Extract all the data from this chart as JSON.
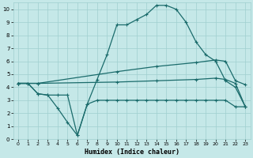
{
  "xlabel": "Humidex (Indice chaleur)",
  "bg_color": "#c5e8e8",
  "grid_color": "#9fcfcf",
  "line_color": "#1a6b6b",
  "xlim": [
    -0.5,
    23.5
  ],
  "ylim": [
    0,
    10.5
  ],
  "xticks": [
    0,
    1,
    2,
    3,
    4,
    5,
    6,
    7,
    8,
    9,
    10,
    11,
    12,
    13,
    14,
    15,
    16,
    17,
    18,
    19,
    20,
    21,
    22,
    23
  ],
  "yticks": [
    0,
    1,
    2,
    3,
    4,
    5,
    6,
    7,
    8,
    9,
    10
  ],
  "line_peak_x": [
    0,
    1,
    2,
    3,
    4,
    5,
    6,
    7,
    8,
    9,
    10,
    11,
    12,
    13,
    14,
    15,
    16,
    17,
    18,
    19,
    20,
    21,
    22,
    23
  ],
  "line_peak_y": [
    4.3,
    4.3,
    3.5,
    3.4,
    3.4,
    3.4,
    0.3,
    2.7,
    4.6,
    6.5,
    8.8,
    8.8,
    9.2,
    9.6,
    10.3,
    10.3,
    10.0,
    9.0,
    7.5,
    6.5,
    6.0,
    4.5,
    4.0,
    2.5
  ],
  "line_dip_x": [
    0,
    1,
    2,
    3,
    4,
    5,
    6,
    7,
    8,
    9,
    10,
    11,
    12,
    13,
    14,
    15,
    16,
    17,
    18,
    19,
    20,
    21,
    22,
    23
  ],
  "line_dip_y": [
    4.3,
    4.3,
    3.5,
    3.4,
    2.4,
    1.3,
    0.3,
    2.7,
    3.0,
    3.0,
    3.0,
    3.0,
    3.0,
    3.0,
    3.0,
    3.0,
    3.0,
    3.0,
    3.0,
    3.0,
    3.0,
    3.0,
    2.5,
    2.5
  ],
  "line_upper_x": [
    0,
    2,
    10,
    14,
    18,
    20,
    21,
    22,
    23
  ],
  "line_upper_y": [
    4.3,
    4.3,
    5.2,
    5.6,
    5.9,
    6.1,
    6.0,
    4.5,
    4.2
  ],
  "line_lower_x": [
    0,
    2,
    10,
    14,
    18,
    20,
    21,
    22,
    23
  ],
  "line_lower_y": [
    4.3,
    4.3,
    4.4,
    4.5,
    4.6,
    4.7,
    4.6,
    4.3,
    2.5
  ]
}
